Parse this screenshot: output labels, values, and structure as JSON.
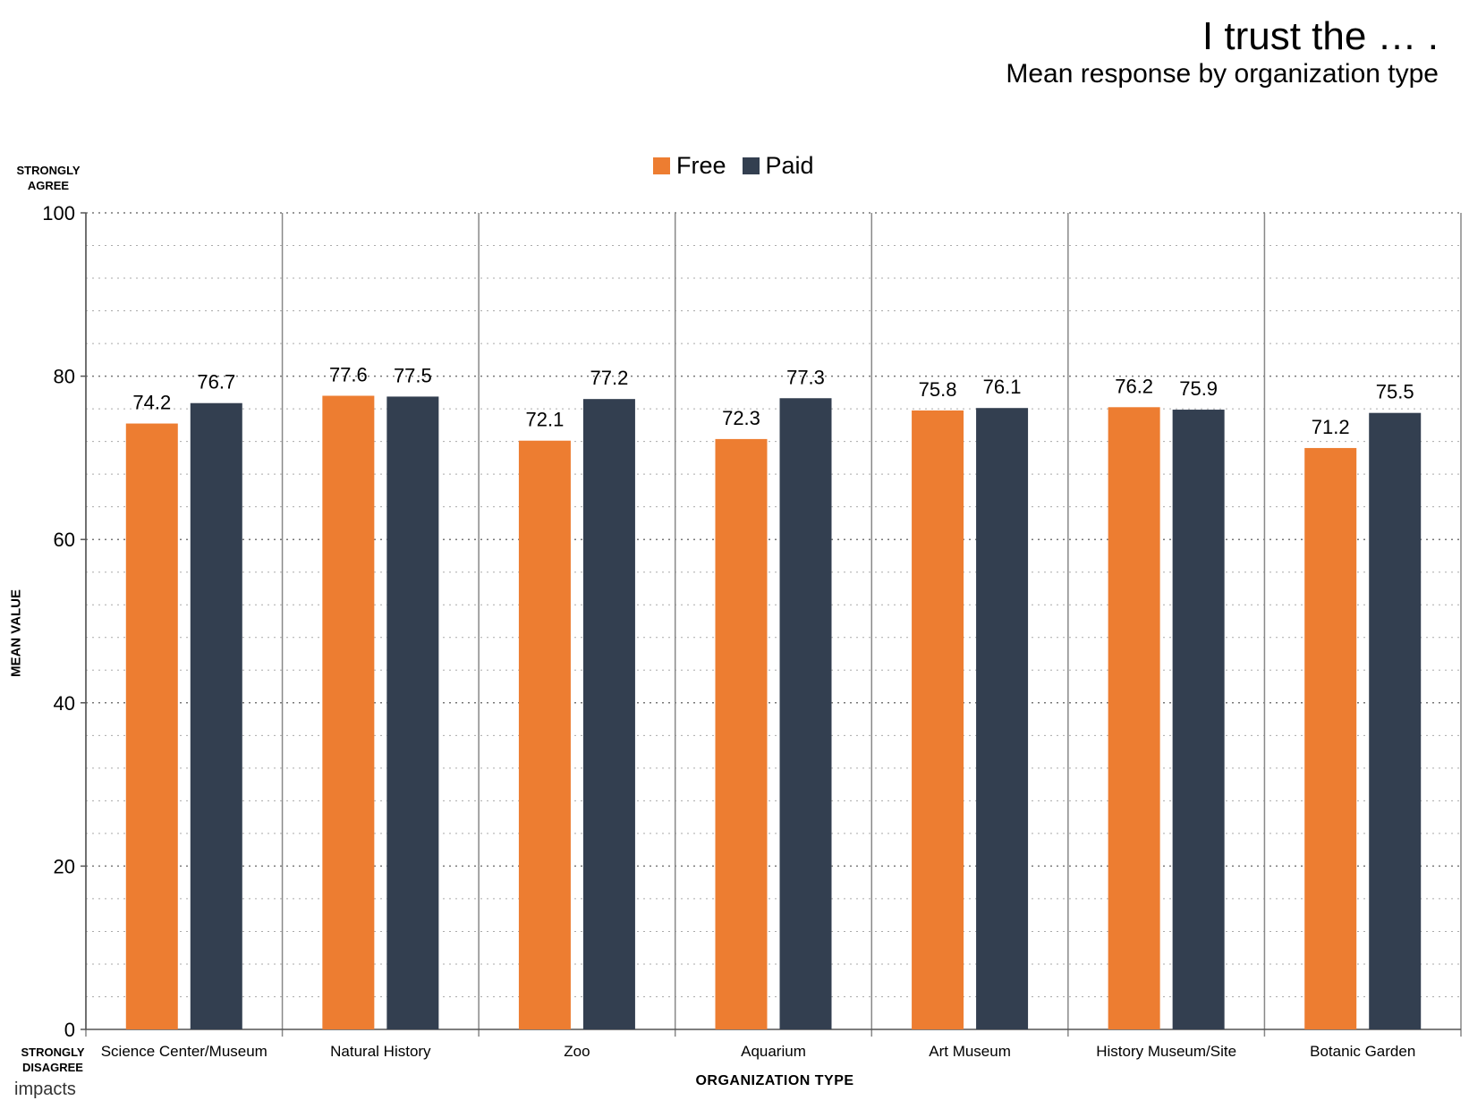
{
  "title": "I trust the … .",
  "subtitle": "Mean response by organization type",
  "y_top_label": "STRONGLY AGREE",
  "y_bottom_label": "STRONGLY DISAGREE",
  "logo_text": "impacts",
  "chart_data": {
    "type": "bar",
    "xlabel": "ORGANIZATION TYPE",
    "ylabel": "MEAN VALUE",
    "ylim": [
      0,
      100
    ],
    "yticks": [
      0,
      20,
      40,
      60,
      80,
      100
    ],
    "grid": true,
    "legend_position": "top-center",
    "categories": [
      "Science Center/Museum",
      "Natural History",
      "Zoo",
      "Aquarium",
      "Art Museum",
      "History Museum/Site",
      "Botanic Garden"
    ],
    "series": [
      {
        "name": "Free",
        "color": "#ED7D31",
        "values": [
          74.2,
          77.6,
          72.1,
          72.3,
          75.8,
          76.2,
          71.2
        ],
        "labels": [
          "74.2",
          "77.6",
          "72.1",
          "72.3",
          "75.8",
          "76.2",
          "71.2"
        ]
      },
      {
        "name": "Paid",
        "color": "#333F50",
        "values": [
          76.7,
          77.5,
          77.2,
          77.3,
          76.1,
          75.9,
          75.5
        ],
        "labels": [
          "76.7",
          "77.5",
          "77.2",
          "77.3",
          "76.1",
          "75.9",
          "75.5"
        ]
      }
    ]
  }
}
